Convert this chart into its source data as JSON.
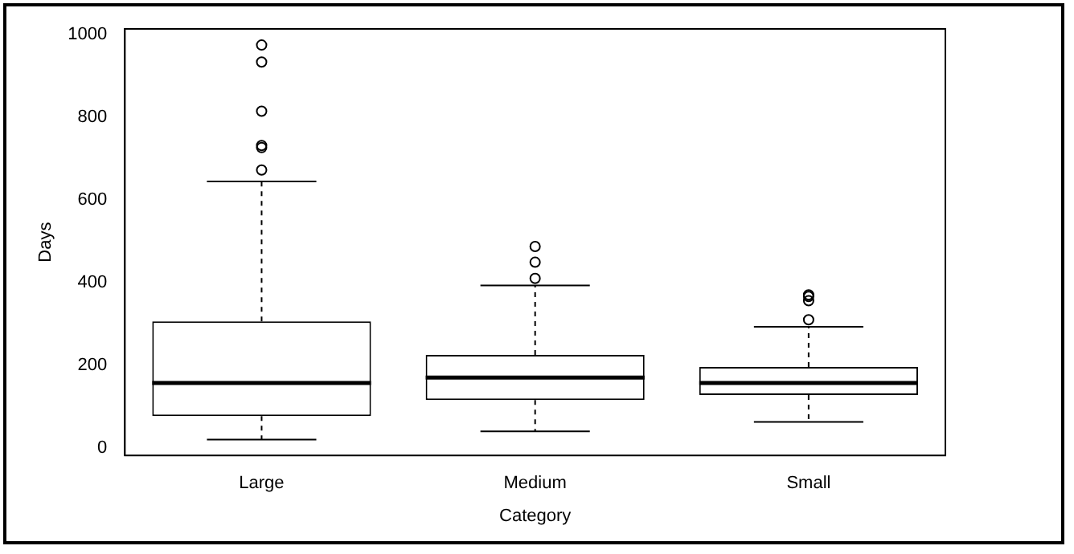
{
  "chart_data": {
    "type": "box",
    "xlabel": "Category",
    "ylabel": "Days",
    "categories": [
      "Large",
      "Medium",
      "Small"
    ],
    "boxes": [
      {
        "low": 20,
        "q1": 77,
        "median": 157,
        "q3": 306,
        "high": 644,
        "outliers": [
          672,
          726,
          731,
          814,
          933,
          974
        ]
      },
      {
        "low": 40,
        "q1": 116,
        "median": 170,
        "q3": 225,
        "high": 393,
        "outliers": [
          410,
          449,
          487
        ]
      },
      {
        "low": 63,
        "q1": 128,
        "median": 157,
        "q3": 196,
        "high": 293,
        "outliers": [
          310,
          356,
          366,
          370
        ]
      }
    ],
    "ylim": [
      -18,
      1013
    ],
    "yticks": [
      0,
      200,
      400,
      600,
      800,
      1000
    ],
    "grid": false,
    "legend": false,
    "marker": "circle"
  }
}
